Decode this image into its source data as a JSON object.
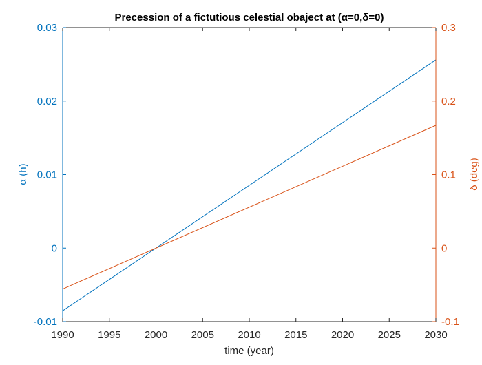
{
  "chart_data": {
    "type": "line",
    "title": "Precession of a fictutious celestial obaject at (α=0,δ=0)",
    "xlabel": "time (year)",
    "x_ticks": [
      1990,
      1995,
      2000,
      2005,
      2010,
      2015,
      2020,
      2025,
      2030
    ],
    "xlim": [
      1990,
      2030
    ],
    "left_axis": {
      "label": "α (h)",
      "color": "#0072BD",
      "ylim": [
        -0.01,
        0.03
      ],
      "ticks": [
        -0.01,
        0,
        0.01,
        0.02,
        0.03
      ],
      "tick_labels": [
        "-0.01",
        "0",
        "0.01",
        "0.02",
        "0.03"
      ]
    },
    "right_axis": {
      "label": "δ (deg)",
      "color": "#D95319",
      "ylim": [
        -0.1,
        0.3
      ],
      "ticks": [
        -0.1,
        0,
        0.1,
        0.2,
        0.3
      ],
      "tick_labels": [
        "-0.1",
        "0",
        "0.1",
        "0.2",
        "0.3"
      ]
    },
    "series": [
      {
        "axis": "left",
        "color": "#0072BD",
        "x": [
          1990,
          2030
        ],
        "y": [
          -0.00853,
          0.0256
        ]
      },
      {
        "axis": "right",
        "color": "#D95319",
        "x": [
          1990,
          2030
        ],
        "y": [
          -0.0557,
          0.167
        ]
      }
    ],
    "grid": false
  }
}
